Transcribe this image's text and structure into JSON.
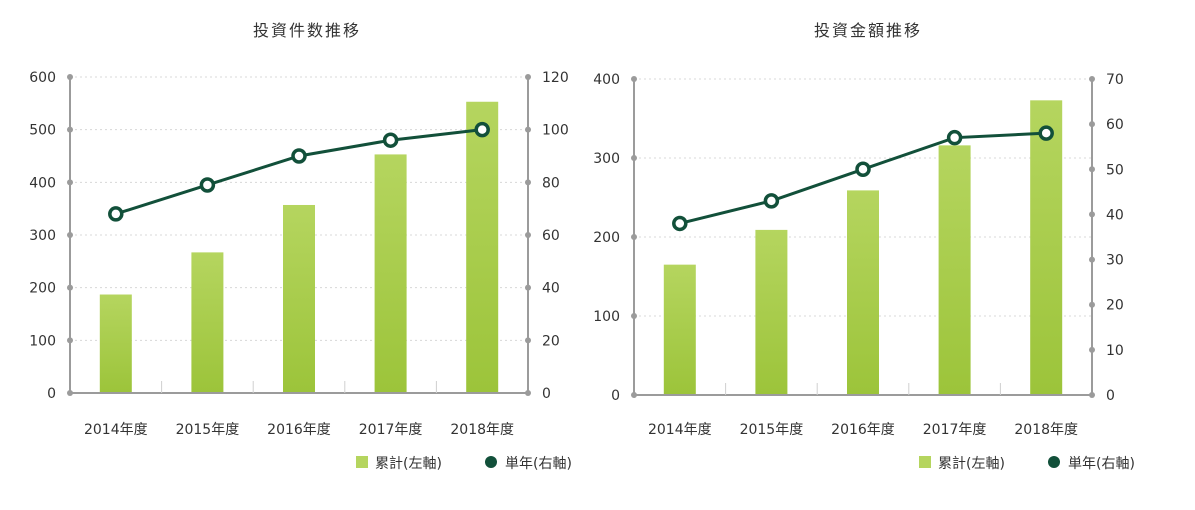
{
  "colors": {
    "bar_top": "#b5d55f",
    "bar_bottom": "#9cc43a",
    "line": "#12503a",
    "marker_fill": "#ffffff",
    "axis": "#9b9b9b",
    "grid": "#d8d8d8",
    "text": "#333333"
  },
  "chart_data": [
    {
      "type": "bar",
      "title": "投資件数推移",
      "categories": [
        "2014年度",
        "2015年度",
        "2016年度",
        "2017年度",
        "2018年度"
      ],
      "y_left": {
        "ticks": [
          "0",
          "100",
          "200",
          "300",
          "400",
          "500",
          "600"
        ],
        "ylim": [
          0,
          600
        ]
      },
      "y_right": {
        "ticks": [
          "0",
          "20",
          "40",
          "60",
          "80",
          "100",
          "120"
        ],
        "ylim": [
          0,
          120
        ]
      },
      "grid": true,
      "legend_position": "bottom-right",
      "series": [
        {
          "name": "累計(左軸)",
          "type": "bar",
          "axis": "left",
          "values": [
            187,
            267,
            357,
            453,
            553
          ]
        },
        {
          "name": "単年(右軸)",
          "type": "line",
          "axis": "right",
          "values": [
            68,
            79,
            90,
            96,
            100
          ]
        }
      ]
    },
    {
      "type": "bar",
      "title": "投資金額推移",
      "categories": [
        "2014年度",
        "2015年度",
        "2016年度",
        "2017年度",
        "2018年度"
      ],
      "y_left": {
        "ticks": [
          "0",
          "100",
          "200",
          "300",
          "400"
        ],
        "ylim": [
          0,
          400
        ]
      },
      "y_right": {
        "ticks": [
          "0",
          "10",
          "20",
          "30",
          "40",
          "50",
          "60",
          "70"
        ],
        "ylim": [
          0,
          70
        ]
      },
      "grid": true,
      "legend_position": "bottom-right",
      "series": [
        {
          "name": "累計(左軸)",
          "type": "bar",
          "axis": "left",
          "values": [
            165,
            209,
            259,
            316,
            373
          ]
        },
        {
          "name": "単年(右軸)",
          "type": "line",
          "axis": "right",
          "values": [
            38,
            43,
            50,
            57,
            58
          ]
        }
      ]
    }
  ]
}
